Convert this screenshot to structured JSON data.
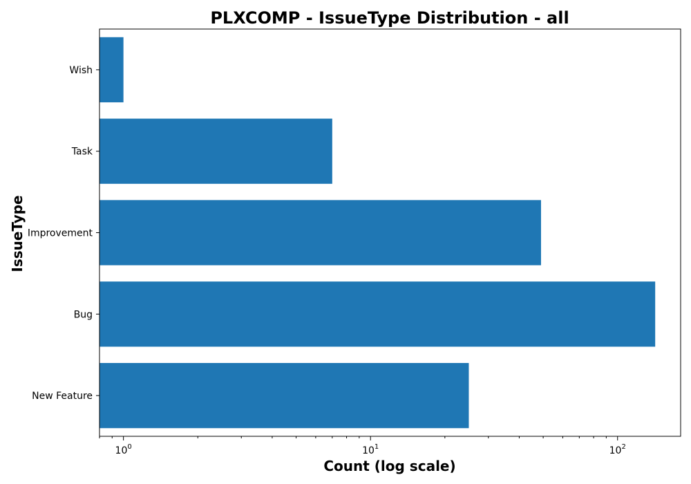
{
  "chart_data": {
    "type": "bar",
    "orientation": "horizontal",
    "title": "PLXCOMP - IssueType Distribution - all",
    "xlabel": "Count (log scale)",
    "ylabel": "IssueType",
    "x_scale": "log",
    "xlim": [
      0.8,
      180
    ],
    "categories": [
      "New Feature",
      "Bug",
      "Improvement",
      "Task",
      "Wish"
    ],
    "values": [
      25,
      142,
      49,
      7,
      1
    ],
    "x_ticks": [
      {
        "base": "10",
        "exp": "0"
      },
      {
        "base": "10",
        "exp": "1"
      },
      {
        "base": "10",
        "exp": "2"
      }
    ],
    "colors": {
      "bar": "#1f77b4"
    },
    "grid": false
  }
}
